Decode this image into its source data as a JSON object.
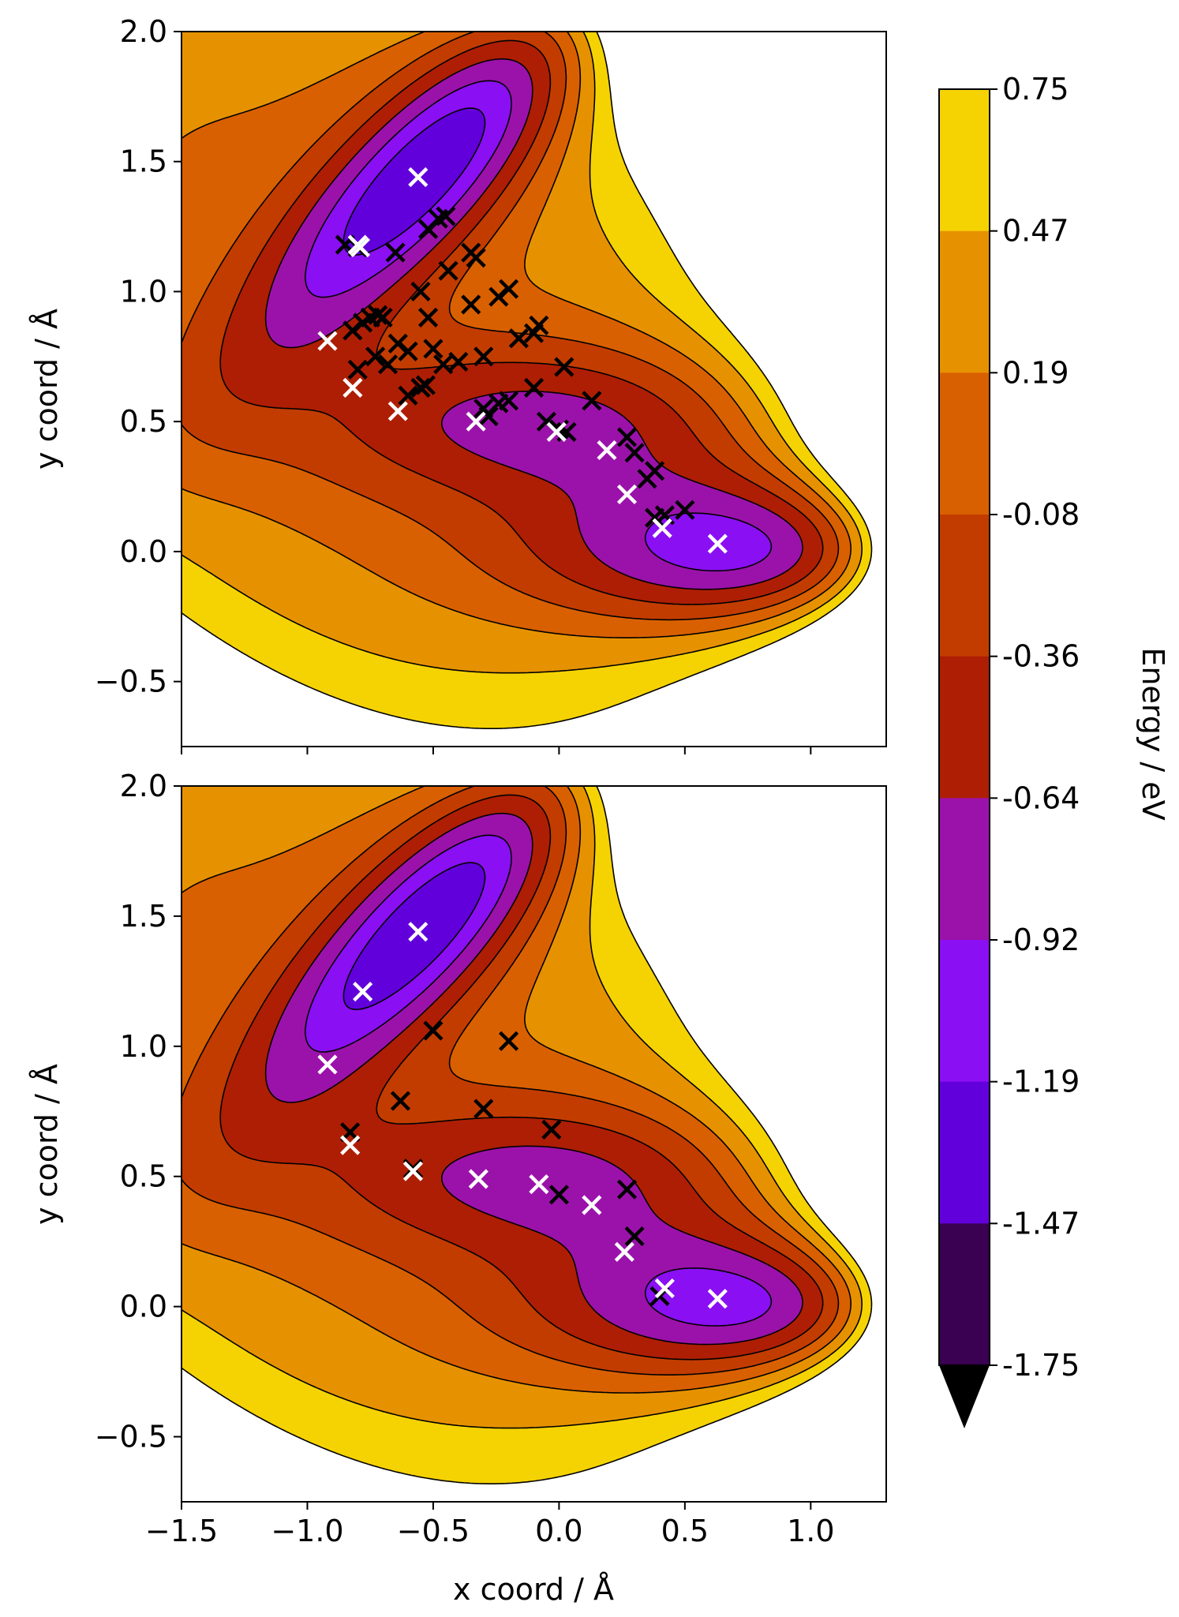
{
  "chart_data": {
    "type": "contour",
    "shared_x": true,
    "xlabel": "x coord / Å",
    "x_ticks": [
      "−1.5",
      "−1.0",
      "−0.5",
      "0.0",
      "0.5",
      "1.0"
    ],
    "x_tick_values": [
      -1.5,
      -1.0,
      -0.5,
      0.0,
      0.5,
      1.0
    ],
    "y_ticks": [
      "2.0",
      "1.5",
      "1.0",
      "0.5",
      "0.0",
      "−0.5"
    ],
    "y_tick_values": [
      2.0,
      1.5,
      1.0,
      0.5,
      0.0,
      -0.5
    ],
    "xlim": [
      -1.5,
      1.3
    ],
    "ylim": [
      -0.75,
      2.0
    ],
    "grid": false,
    "colorbar": {
      "label": "Energy / eV",
      "tick_labels": [
        "0.75",
        "0.47",
        "0.19",
        "-0.08",
        "-0.36",
        "-0.64",
        "-0.92",
        "-1.19",
        "-1.47",
        "-1.75"
      ],
      "levels": [
        0.75,
        0.47,
        0.19,
        -0.08,
        -0.36,
        -0.64,
        -0.92,
        -1.19,
        -1.47,
        -1.75
      ],
      "colors": [
        "#f5d303",
        "#e69200",
        "#d96000",
        "#c23c00",
        "#ae1e04",
        "#9b12aa",
        "#8a0ff2",
        "#6200dc",
        "#3a0052"
      ],
      "extend": "min",
      "extend_color": "#000000"
    },
    "panels": [
      {
        "ylabel": "y coord / Å",
        "markers_black": [
          [
            -0.85,
            1.18
          ],
          [
            -0.8,
            1.17
          ],
          [
            -0.65,
            1.15
          ],
          [
            -0.52,
            1.24
          ],
          [
            -0.48,
            1.28
          ],
          [
            -0.45,
            1.29
          ],
          [
            -0.44,
            1.08
          ],
          [
            -0.35,
            1.15
          ],
          [
            -0.33,
            1.13
          ],
          [
            -0.24,
            0.98
          ],
          [
            -0.2,
            1.01
          ],
          [
            -0.55,
            1.0
          ],
          [
            -0.82,
            0.85
          ],
          [
            -0.78,
            0.88
          ],
          [
            -0.75,
            0.9
          ],
          [
            -0.72,
            0.91
          ],
          [
            -0.7,
            0.9
          ],
          [
            -0.64,
            0.8
          ],
          [
            -0.6,
            0.77
          ],
          [
            -0.73,
            0.75
          ],
          [
            -0.68,
            0.72
          ],
          [
            -0.52,
            0.9
          ],
          [
            -0.5,
            0.78
          ],
          [
            -0.46,
            0.72
          ],
          [
            -0.4,
            0.73
          ],
          [
            -0.35,
            0.95
          ],
          [
            -0.3,
            0.75
          ],
          [
            -0.16,
            0.82
          ],
          [
            -0.1,
            0.84
          ],
          [
            -0.08,
            0.87
          ],
          [
            0.02,
            0.71
          ],
          [
            -0.8,
            0.7
          ],
          [
            -0.6,
            0.6
          ],
          [
            -0.55,
            0.63
          ],
          [
            -0.53,
            0.64
          ],
          [
            -0.3,
            0.55
          ],
          [
            -0.28,
            0.52
          ],
          [
            -0.24,
            0.57
          ],
          [
            -0.2,
            0.58
          ],
          [
            -0.1,
            0.63
          ],
          [
            -0.05,
            0.5
          ],
          [
            0.0,
            0.47
          ],
          [
            0.03,
            0.46
          ],
          [
            0.13,
            0.58
          ],
          [
            0.27,
            0.44
          ],
          [
            0.3,
            0.38
          ],
          [
            0.35,
            0.28
          ],
          [
            0.38,
            0.31
          ],
          [
            0.38,
            0.13
          ],
          [
            0.42,
            0.14
          ],
          [
            0.5,
            0.16
          ]
        ],
        "markers_white": [
          [
            -0.56,
            1.44
          ],
          [
            -0.8,
            1.18
          ],
          [
            -0.79,
            1.17
          ],
          [
            -0.92,
            0.81
          ],
          [
            -0.82,
            0.63
          ],
          [
            -0.64,
            0.54
          ],
          [
            -0.33,
            0.5
          ],
          [
            -0.01,
            0.46
          ],
          [
            0.19,
            0.39
          ],
          [
            0.27,
            0.22
          ],
          [
            0.41,
            0.09
          ],
          [
            0.63,
            0.03
          ]
        ]
      },
      {
        "ylabel": "y coord / Å",
        "markers_black": [
          [
            -0.83,
            0.67
          ],
          [
            -0.63,
            0.79
          ],
          [
            -0.58,
            0.53
          ],
          [
            -0.5,
            1.06
          ],
          [
            -0.2,
            1.02
          ],
          [
            -0.3,
            0.76
          ],
          [
            -0.03,
            0.68
          ],
          [
            0.0,
            0.43
          ],
          [
            0.27,
            0.45
          ],
          [
            0.3,
            0.27
          ],
          [
            0.4,
            0.04
          ]
        ],
        "markers_white": [
          [
            -0.56,
            1.44
          ],
          [
            -0.78,
            1.21
          ],
          [
            -0.92,
            0.93
          ],
          [
            -0.83,
            0.62
          ],
          [
            -0.58,
            0.52
          ],
          [
            -0.32,
            0.49
          ],
          [
            -0.08,
            0.47
          ],
          [
            0.13,
            0.39
          ],
          [
            0.26,
            0.21
          ],
          [
            0.42,
            0.07
          ],
          [
            0.63,
            0.03
          ]
        ]
      }
    ]
  }
}
